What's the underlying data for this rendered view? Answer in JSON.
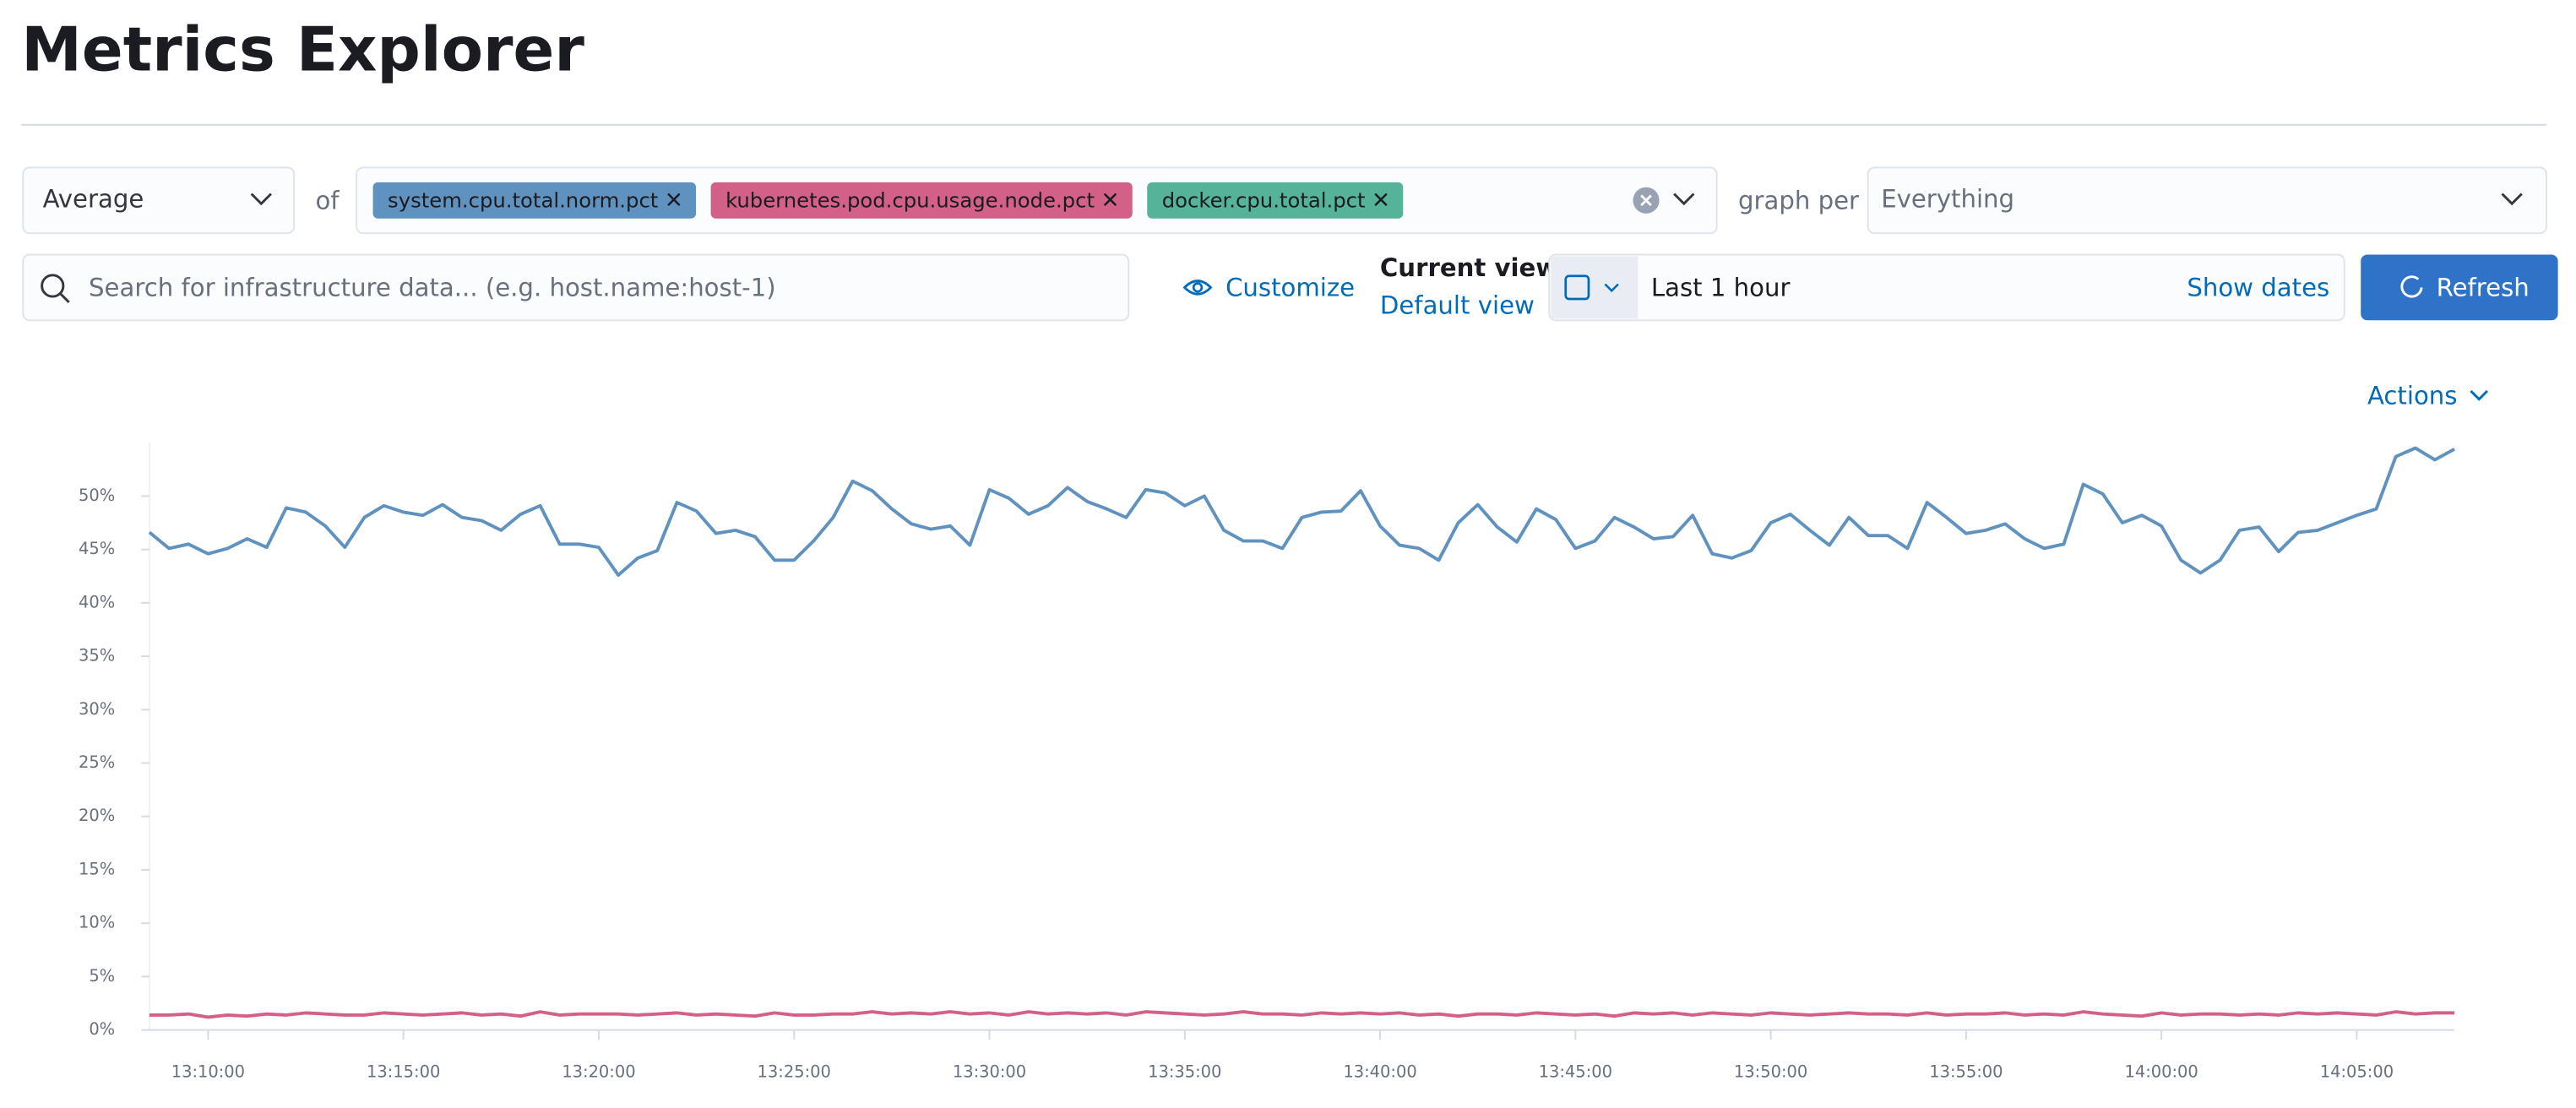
{
  "header": {
    "title": "Metrics Explorer"
  },
  "controls": {
    "aggregation": "Average",
    "of_label": "of",
    "metrics": [
      {
        "label": "system.cpu.total.norm.pct",
        "color": "#6092c0"
      },
      {
        "label": "kubernetes.pod.cpu.usage.node.pct",
        "color": "#d36086"
      },
      {
        "label": "docker.cpu.total.pct",
        "color": "#54b399"
      }
    ],
    "graph_per_label": "graph per",
    "graph_per": "Everything",
    "search_placeholder": "Search for infrastructure data... (e.g. host.name:host-1)",
    "customize": "Customize",
    "current_view_label": "Current view",
    "current_view": "Default view",
    "time_range": "Last 1 hour",
    "show_dates": "Show dates",
    "refresh": "Refresh",
    "actions": "Actions"
  },
  "chart_data": {
    "type": "line",
    "x": [
      "13:08:30",
      "13:09:00",
      "13:09:30",
      "13:10:00",
      "13:10:30",
      "13:11:00",
      "13:11:30",
      "13:12:00",
      "13:12:30",
      "13:13:00",
      "13:13:30",
      "13:14:00",
      "13:14:30",
      "13:15:00",
      "13:15:30",
      "13:16:00",
      "13:16:30",
      "13:17:00",
      "13:17:30",
      "13:18:00",
      "13:18:30",
      "13:19:00",
      "13:19:30",
      "13:20:00",
      "13:20:30",
      "13:21:00",
      "13:21:30",
      "13:22:00",
      "13:22:30",
      "13:23:00",
      "13:23:30",
      "13:24:00",
      "13:24:30",
      "13:25:00",
      "13:25:30",
      "13:26:00",
      "13:26:30",
      "13:27:00",
      "13:27:30",
      "13:28:00",
      "13:28:30",
      "13:29:00",
      "13:29:30",
      "13:30:00",
      "13:30:30",
      "13:31:00",
      "13:31:30",
      "13:32:00",
      "13:32:30",
      "13:33:00",
      "13:33:30",
      "13:34:00",
      "13:34:30",
      "13:35:00",
      "13:35:30",
      "13:36:00",
      "13:36:30",
      "13:37:00",
      "13:37:30",
      "13:38:00",
      "13:38:30",
      "13:39:00",
      "13:39:30",
      "13:40:00",
      "13:40:30",
      "13:41:00",
      "13:41:30",
      "13:42:00",
      "13:42:30",
      "13:43:00",
      "13:43:30",
      "13:44:00",
      "13:44:30",
      "13:45:00",
      "13:45:30",
      "13:46:00",
      "13:46:30",
      "13:47:00",
      "13:47:30",
      "13:48:00",
      "13:48:30",
      "13:49:00",
      "13:49:30",
      "13:50:00",
      "13:50:30",
      "13:51:00",
      "13:51:30",
      "13:52:00",
      "13:52:30",
      "13:53:00",
      "13:53:30",
      "13:54:00",
      "13:54:30",
      "13:55:00",
      "13:55:30",
      "13:56:00",
      "13:56:30",
      "13:57:00",
      "13:57:30",
      "13:58:00",
      "13:58:30",
      "13:59:00",
      "13:59:30",
      "14:00:00",
      "14:00:30",
      "14:01:00",
      "14:01:30",
      "14:02:00",
      "14:02:30",
      "14:03:00",
      "14:03:30",
      "14:04:00",
      "14:04:30",
      "14:05:00",
      "14:05:30",
      "14:06:00",
      "14:06:30",
      "14:07:00",
      "14:07:30"
    ],
    "series": [
      {
        "color": "#6092c0",
        "values": [
          46.6,
          45.1,
          45.5,
          44.6,
          45.1,
          46.0,
          45.2,
          48.9,
          48.5,
          47.2,
          45.2,
          48.0,
          49.1,
          48.5,
          48.2,
          49.2,
          48.0,
          47.7,
          46.8,
          48.3,
          49.1,
          45.5,
          45.5,
          45.2,
          42.6,
          44.2,
          44.9,
          49.4,
          48.6,
          46.5,
          46.8,
          46.2,
          44.0,
          44.0,
          45.8,
          48.0,
          51.4,
          50.5,
          48.8,
          47.4,
          46.9,
          47.2,
          45.4,
          50.6,
          49.8,
          48.3,
          49.1,
          50.8,
          49.5,
          48.8,
          48.0,
          50.6,
          50.3,
          49.1,
          50.0,
          46.8,
          45.8,
          45.8,
          45.1,
          48.0,
          48.5,
          48.6,
          50.5,
          47.2,
          45.4,
          45.1,
          44.0,
          47.5,
          49.2,
          47.1,
          45.7,
          48.8,
          47.8,
          45.1,
          45.8,
          48.0,
          47.1,
          46.0,
          46.2,
          48.2,
          44.6,
          44.2,
          44.9,
          47.5,
          48.3,
          46.8,
          45.4,
          48.0,
          46.3,
          46.3,
          45.1,
          49.4,
          48.0,
          46.5,
          46.8,
          47.4,
          46.0,
          45.1,
          45.5,
          51.1,
          50.2,
          47.5,
          48.2,
          47.2,
          44.0,
          42.8,
          44.0,
          46.8,
          47.1,
          44.8,
          46.6,
          46.8,
          47.5,
          48.2,
          48.8,
          53.7,
          54.5,
          53.4,
          54.4
        ]
      },
      {
        "color": "#d36086",
        "values": [
          1.4,
          1.4,
          1.5,
          1.2,
          1.4,
          1.3,
          1.5,
          1.4,
          1.6,
          1.5,
          1.4,
          1.4,
          1.6,
          1.5,
          1.4,
          1.5,
          1.6,
          1.4,
          1.5,
          1.3,
          1.7,
          1.4,
          1.5,
          1.5,
          1.5,
          1.4,
          1.5,
          1.6,
          1.4,
          1.5,
          1.4,
          1.3,
          1.6,
          1.4,
          1.4,
          1.5,
          1.5,
          1.7,
          1.5,
          1.6,
          1.5,
          1.7,
          1.5,
          1.6,
          1.4,
          1.7,
          1.5,
          1.6,
          1.5,
          1.6,
          1.4,
          1.7,
          1.6,
          1.5,
          1.4,
          1.5,
          1.7,
          1.5,
          1.5,
          1.4,
          1.6,
          1.5,
          1.6,
          1.5,
          1.6,
          1.4,
          1.5,
          1.3,
          1.5,
          1.5,
          1.4,
          1.6,
          1.5,
          1.4,
          1.5,
          1.3,
          1.6,
          1.5,
          1.6,
          1.4,
          1.6,
          1.5,
          1.4,
          1.6,
          1.5,
          1.4,
          1.5,
          1.6,
          1.5,
          1.5,
          1.4,
          1.6,
          1.4,
          1.5,
          1.5,
          1.6,
          1.4,
          1.5,
          1.4,
          1.7,
          1.5,
          1.4,
          1.3,
          1.6,
          1.4,
          1.5,
          1.5,
          1.4,
          1.5,
          1.4,
          1.6,
          1.5,
          1.6,
          1.5,
          1.4,
          1.7,
          1.5,
          1.6,
          1.6
        ]
      }
    ],
    "xlim": [
      "13:08:30",
      "14:07:30"
    ],
    "xticks": [
      "13:10:00",
      "13:15:00",
      "13:20:00",
      "13:25:00",
      "13:30:00",
      "13:35:00",
      "13:40:00",
      "13:45:00",
      "13:50:00",
      "13:55:00",
      "14:00:00",
      "14:05:00"
    ],
    "ylim": [
      0,
      55
    ],
    "yticks": [
      {
        "value": 0,
        "label": "0%"
      },
      {
        "value": 5,
        "label": "5%"
      },
      {
        "value": 10,
        "label": "10%"
      },
      {
        "value": 15,
        "label": "15%"
      },
      {
        "value": 20,
        "label": "20%"
      },
      {
        "value": 25,
        "label": "25%"
      },
      {
        "value": 30,
        "label": "30%"
      },
      {
        "value": 35,
        "label": "35%"
      },
      {
        "value": 40,
        "label": "40%"
      },
      {
        "value": 45,
        "label": "45%"
      },
      {
        "value": 50,
        "label": "50%"
      }
    ]
  }
}
